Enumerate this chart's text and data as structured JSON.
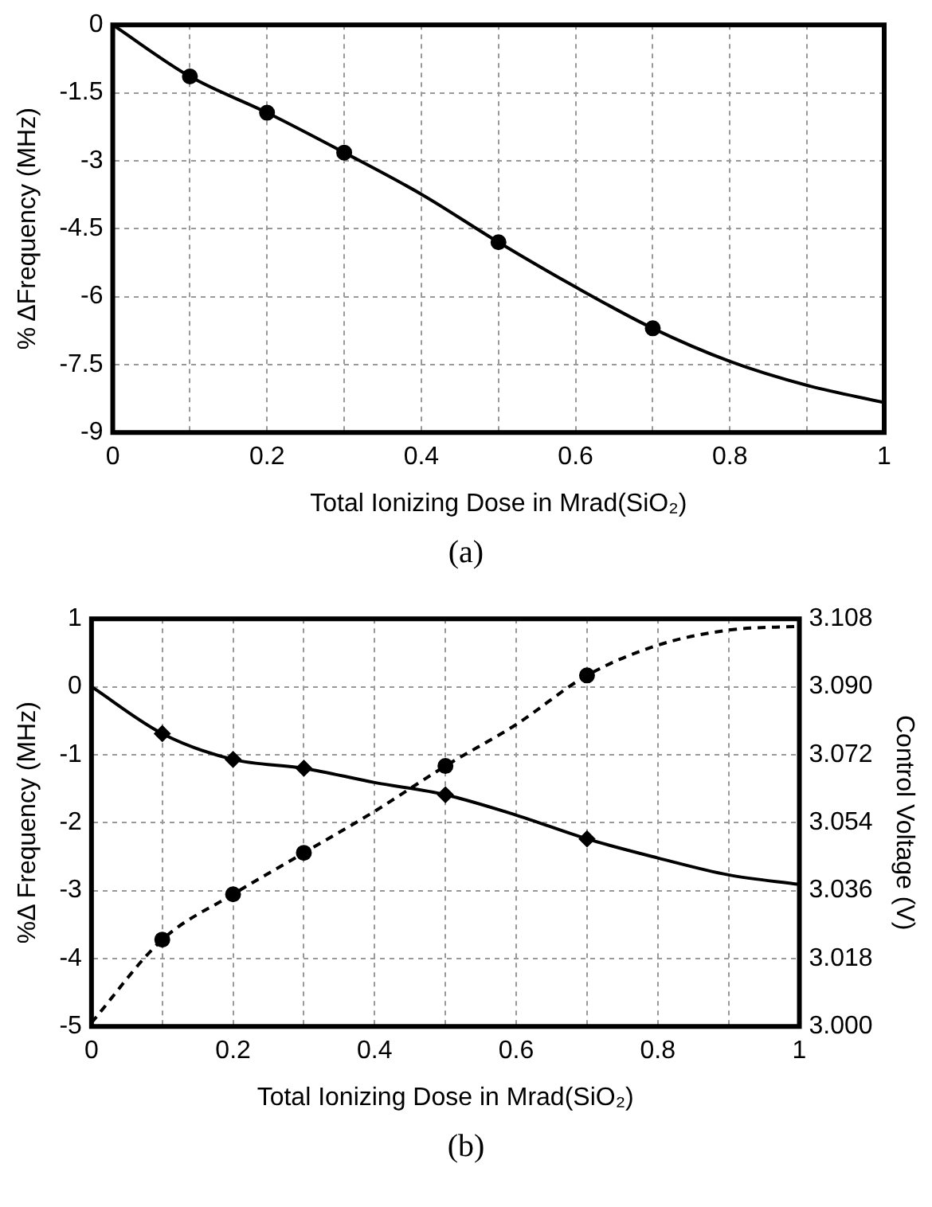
{
  "chart_data": [
    {
      "type": "line",
      "xlabel": "Total Ionizing Dose in Mrad(SiO₂)",
      "ylabel": "% ΔFrequency (MHz)",
      "annotations": [
        "(a)"
      ],
      "xlim": [
        0,
        1
      ],
      "xticks": [
        0,
        {
          "value": 0.1,
          "label": null
        },
        0.2,
        {
          "value": 0.3,
          "label": null
        },
        0.4,
        {
          "value": 0.5,
          "label": null
        },
        0.6,
        {
          "value": 0.7,
          "label": null
        },
        0.8,
        {
          "value": 0.9,
          "label": null
        },
        1
      ],
      "ylim": [
        -9,
        0
      ],
      "yticks": [
        0,
        -1.5,
        -3,
        -4.5,
        -6,
        -7.5,
        -9
      ],
      "grid": true,
      "series": [
        {
          "type": "line",
          "color": "#000000",
          "marker": "none",
          "line_style": "solid",
          "x": [
            0,
            0.1,
            0.2,
            0.3,
            0.4,
            0.5,
            0.6,
            0.7,
            0.8,
            0.9,
            1
          ],
          "values": [
            0,
            -1.14,
            -1.94,
            -2.82,
            -3.74,
            -4.8,
            -5.79,
            -6.7,
            -7.43,
            -7.96,
            -8.34
          ]
        },
        {
          "type": "scatter",
          "color": "#000000",
          "marker": "circle",
          "x": [
            0.1,
            0.2,
            0.3,
            0.5,
            0.7
          ],
          "values": [
            -1.14,
            -1.94,
            -2.82,
            -4.8,
            -6.7
          ]
        }
      ]
    },
    {
      "type": "line",
      "xlabel": "Total Ionizing Dose in Mrad(SiO₂)",
      "ylabel": "%Δ Frequency (MHz)",
      "y2label": "Control Voltage (V)",
      "annotations": [
        "(b)"
      ],
      "xlim": [
        0,
        1
      ],
      "xticks": [
        0,
        {
          "value": 0.1,
          "label": null
        },
        0.2,
        {
          "value": 0.3,
          "label": null
        },
        0.4,
        {
          "value": 0.5,
          "label": null
        },
        0.6,
        {
          "value": 0.7,
          "label": null
        },
        0.8,
        {
          "value": 0.9,
          "label": null
        },
        1
      ],
      "ylim": [
        -5,
        1
      ],
      "yticks": [
        1,
        0,
        -1,
        -2,
        -3,
        -4,
        -5
      ],
      "y2lim": [
        3,
        3.108
      ],
      "y2ticks": [
        {
          "value": 3,
          "label": "3.000"
        },
        {
          "value": 3.018,
          "label": "3.018"
        },
        {
          "value": 3.036,
          "label": "3.036"
        },
        {
          "value": 3.054,
          "label": "3.054"
        },
        {
          "value": 3.072,
          "label": "3.072"
        },
        {
          "value": 3.09,
          "label": "3.090"
        },
        {
          "value": 3.108,
          "label": "3.108"
        }
      ],
      "grid": true,
      "series": [
        {
          "type": "line",
          "color": "#000000",
          "marker": "none",
          "line_style": "solid",
          "x": [
            0,
            0.1,
            0.2,
            0.3,
            0.4,
            0.5,
            0.6,
            0.7,
            0.8,
            0.9,
            1
          ],
          "values": [
            0,
            -0.69,
            -1.07,
            -1.2,
            -1.41,
            -1.59,
            -1.89,
            -2.24,
            -2.52,
            -2.77,
            -2.91
          ]
        },
        {
          "type": "scatter",
          "color": "#000000",
          "marker": "diamond",
          "x": [
            0.1,
            0.2,
            0.3,
            0.5,
            0.7
          ],
          "values": [
            -0.69,
            -1.07,
            -1.2,
            -1.59,
            -2.24
          ]
        },
        {
          "type": "line",
          "axis": "y2",
          "color": "#000000",
          "marker": "none",
          "line_style": "dashed",
          "x": [
            0,
            0.1,
            0.2,
            0.3,
            0.4,
            0.5,
            0.6,
            0.7,
            0.8,
            0.9,
            1
          ],
          "values": [
            3.001,
            3.023,
            3.035,
            3.046,
            3.057,
            3.069,
            3.08,
            3.093,
            3.101,
            3.105,
            3.106
          ]
        },
        {
          "type": "scatter",
          "axis": "y2",
          "color": "#000000",
          "marker": "circle",
          "x": [
            0.1,
            0.2,
            0.3,
            0.5,
            0.7
          ],
          "values": [
            3.023,
            3.035,
            3.046,
            3.069,
            3.093
          ]
        }
      ]
    }
  ]
}
